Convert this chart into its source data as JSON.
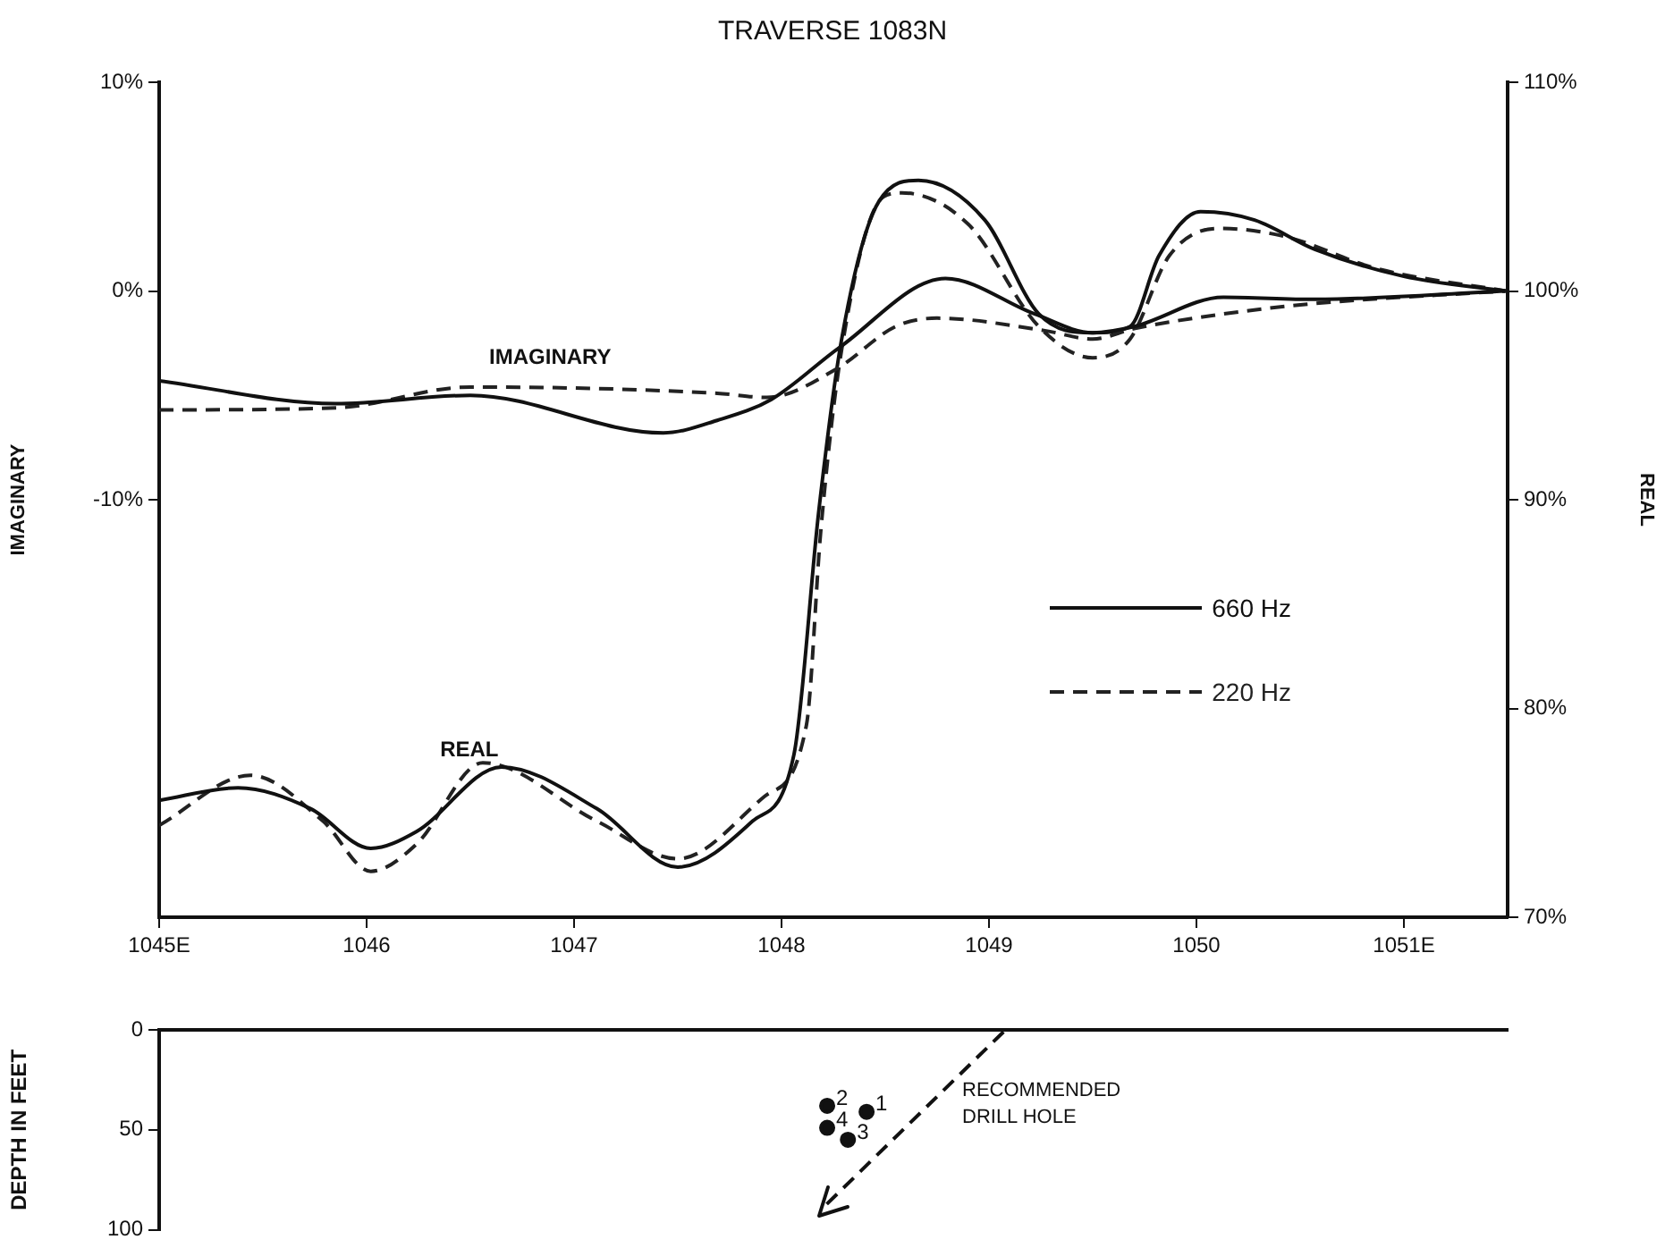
{
  "chart_data": [
    {
      "type": "line",
      "title": "TRAVERSE 1083N",
      "ylabel": "IMAGINARY",
      "y2label": "REAL",
      "xlim": [
        1045,
        1051.5
      ],
      "xticks": [
        {
          "value": 1045,
          "label": "1045E"
        },
        1046,
        1047,
        1048,
        1049,
        1050,
        {
          "value": 1051,
          "label": "1051E"
        }
      ],
      "ylim": [
        -30,
        10
      ],
      "yticks": [
        {
          "value": 10,
          "label": "10%"
        },
        {
          "value": 0,
          "label": "0%"
        },
        {
          "value": -10,
          "label": "-10%"
        }
      ],
      "y2lim": [
        70,
        110
      ],
      "y2ticks": [
        {
          "value": 70,
          "label": "70%"
        },
        {
          "value": 80,
          "label": "80%"
        },
        {
          "value": 90,
          "label": "90%"
        },
        {
          "value": 100,
          "label": "100%"
        },
        {
          "value": 110,
          "label": "110%"
        }
      ],
      "legend": "right",
      "marker": "none",
      "annotations": [
        "IMAGINARY",
        "REAL"
      ],
      "series": [
        {
          "name": "660 Hz",
          "color": "#111111",
          "line_style": "solid",
          "x": [
            1045,
            1045.85,
            1046.5,
            1047.43,
            1047.69,
            1047.95,
            1048.28,
            1048.79,
            1049.22,
            1049.5,
            1049.7,
            1050.13,
            1050.57,
            1051.49
          ],
          "values": [
            -4.3,
            -5.4,
            -5.0,
            -6.8,
            -6.2,
            -5.2,
            -2.7,
            0.6,
            -1.1,
            -2.0,
            -1.7,
            -0.3,
            -0.4,
            0
          ]
        },
        {
          "name": "220 Hz",
          "color": "#222222",
          "line_style": "dashed",
          "x": [
            1045,
            1045.85,
            1046.5,
            1047.69,
            1047.93,
            1048.27,
            1048.55,
            1048.75,
            1049.27,
            1049.5,
            1049.7,
            1050.13,
            1050.57,
            1051.49
          ],
          "values": [
            -5.7,
            -5.6,
            -4.6,
            -4.9,
            -5.1,
            -3.7,
            -1.7,
            -1.3,
            -1.9,
            -2.3,
            -1.8,
            -1.1,
            -0.6,
            0
          ]
        },
        {
          "color": "#111111",
          "line_style": "solid",
          "axis": "y2",
          "x": [
            1045,
            1045.38,
            1045.73,
            1046.02,
            1046.24,
            1046.65,
            1047.11,
            1047.5,
            1047.86,
            1048.06,
            1048.18,
            1048.29,
            1048.47,
            1048.66,
            1048.98,
            1049.24,
            1049.5,
            1049.68,
            1049.82,
            1050.02,
            1050.28,
            1050.57,
            1051,
            1051.49
          ],
          "values": [
            75.6,
            76.2,
            75.2,
            73.3,
            74.1,
            77.2,
            75.2,
            72.4,
            74.6,
            77.8,
            89.5,
            97.7,
            104.3,
            105.3,
            103.4,
            98.9,
            98.0,
            98.3,
            101.7,
            103.8,
            103.4,
            102.0,
            100.7,
            100
          ]
        },
        {
          "color": "#222222",
          "line_style": "dashed",
          "axis": "y2",
          "x": [
            1045,
            1045.44,
            1045.79,
            1046.02,
            1046.24,
            1046.56,
            1047.11,
            1047.5,
            1047.92,
            1048.12,
            1048.19,
            1048.29,
            1048.49,
            1048.58,
            1048.9,
            1049.24,
            1049.5,
            1049.68,
            1049.87,
            1050.11,
            1050.43,
            1050.86,
            1051.49
          ],
          "values": [
            74.4,
            76.8,
            74.6,
            72.2,
            73.5,
            77.4,
            74.6,
            72.8,
            75.8,
            79.2,
            88.6,
            97.2,
            104.5,
            104.7,
            103.2,
            98.3,
            96.8,
            97.7,
            101.7,
            103.0,
            102.6,
            101.1,
            100
          ]
        }
      ]
    },
    {
      "type": "scatter",
      "ylabel": "DEPTH IN FEET",
      "xlim": [
        1045,
        1051.5
      ],
      "ylim": [
        100,
        0
      ],
      "yticks": [
        0,
        50,
        100
      ],
      "tick_labels": "y",
      "annotations": [
        {
          "text": "2",
          "x": 1048.22,
          "y": 38
        },
        {
          "text": "1",
          "x": 1048.41,
          "y": 41
        },
        {
          "text": "4",
          "x": 1048.22,
          "y": 49
        },
        {
          "text": "3",
          "x": 1048.32,
          "y": 55
        },
        "RECOMMENDED DRILL HOLE"
      ],
      "series": [
        {
          "color": "#111111",
          "marker": "circle",
          "x": [
            1048.22,
            1048.41,
            1048.22,
            1048.32
          ],
          "values": [
            38,
            41,
            49,
            55
          ]
        },
        {
          "type": "line",
          "line_style": "dashed",
          "marker": "none",
          "color": "#111111",
          "x": [
            1049.07,
            1048.19
          ],
          "values": [
            1,
            90
          ]
        }
      ]
    }
  ]
}
